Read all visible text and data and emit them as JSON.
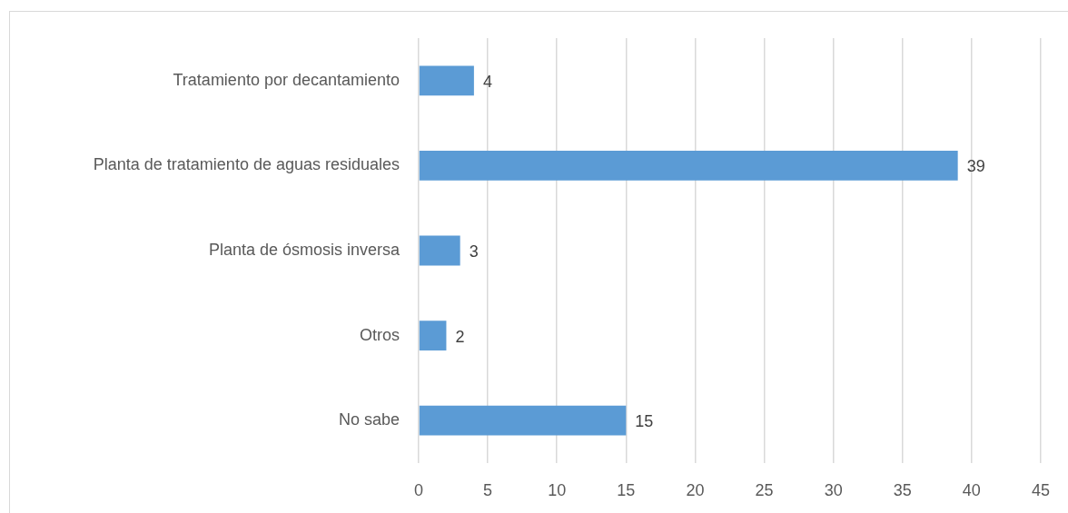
{
  "chart_data": {
    "type": "bar",
    "orientation": "horizontal",
    "categories": [
      "Tratamiento por decantamiento",
      "Planta de tratamiento de aguas residuales",
      "Planta de ósmosis inversa",
      "Otros",
      "No sabe"
    ],
    "values": [
      4,
      39,
      3,
      2,
      15
    ],
    "color": "#5b9bd5",
    "xlim": [
      0,
      45
    ],
    "xticks": [
      0,
      5,
      10,
      15,
      20,
      25,
      30,
      35,
      40,
      45
    ],
    "grid": "x",
    "data_labels": true
  }
}
